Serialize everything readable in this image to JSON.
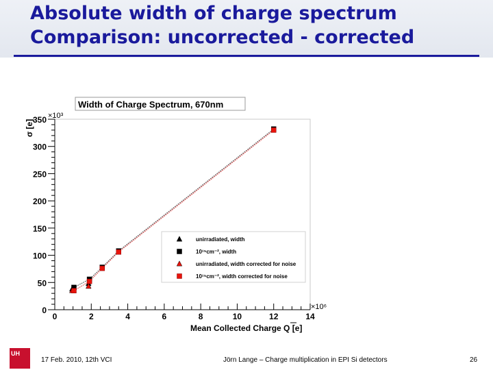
{
  "slide": {
    "title_line1": "Absolute width of charge spectrum",
    "title_line2": "Comparison: uncorrected - corrected"
  },
  "footer": {
    "logo_text": "UH",
    "date": "17 Feb. 2010,  12th VCI",
    "author": "Jörn Lange – Charge multiplication in EPI Si detectors",
    "page_number": "26"
  },
  "chart_data": {
    "type": "scatter",
    "title": "Width of Charge Spectrum, 670nm",
    "xlabel": "Mean Collected Charge Q [e]",
    "ylabel": "σ [e]",
    "x_multiplier": "×10⁶",
    "y_multiplier": "×10³",
    "xlim": [
      0,
      14
    ],
    "ylim": [
      0,
      350
    ],
    "x_ticks": [
      0,
      2,
      4,
      6,
      8,
      10,
      12,
      14
    ],
    "y_ticks": [
      0,
      50,
      100,
      150,
      200,
      250,
      300,
      350
    ],
    "grid": false,
    "legend_position": "bottom-right",
    "series": [
      {
        "name": "unirradiated, width",
        "marker": "triangle",
        "color": "#000000",
        "x": [
          0.95,
          1.85
        ],
        "y": [
          38,
          48
        ]
      },
      {
        "name": "10¹⁵cm⁻², width",
        "marker": "square",
        "color": "#000000",
        "x": [
          1.05,
          1.9,
          2.6,
          3.5,
          12.0
        ],
        "y": [
          41,
          56,
          78,
          108,
          332
        ]
      },
      {
        "name": "unirradiated, width corrected for noise",
        "marker": "triangle",
        "color": "#e8140c",
        "x": [
          0.95,
          1.85
        ],
        "y": [
          35,
          43
        ]
      },
      {
        "name": "10¹⁵cm⁻², width corrected for noise",
        "marker": "square",
        "color": "#e8140c",
        "x": [
          1.05,
          1.9,
          2.6,
          3.5,
          12.0
        ],
        "y": [
          35,
          52,
          76,
          106,
          330
        ]
      }
    ]
  }
}
